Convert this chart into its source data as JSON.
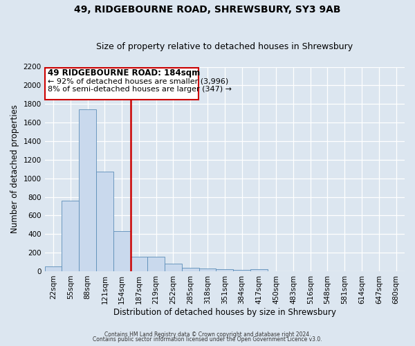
{
  "title": "49, RIDGEBOURNE ROAD, SHREWSBURY, SY3 9AB",
  "subtitle": "Size of property relative to detached houses in Shrewsbury",
  "xlabel": "Distribution of detached houses by size in Shrewsbury",
  "ylabel": "Number of detached properties",
  "bar_labels": [
    "22sqm",
    "55sqm",
    "88sqm",
    "121sqm",
    "154sqm",
    "187sqm",
    "219sqm",
    "252sqm",
    "285sqm",
    "318sqm",
    "351sqm",
    "384sqm",
    "417sqm",
    "450sqm",
    "483sqm",
    "516sqm",
    "548sqm",
    "581sqm",
    "614sqm",
    "647sqm",
    "680sqm"
  ],
  "bar_heights": [
    55,
    760,
    1740,
    1070,
    430,
    155,
    155,
    80,
    40,
    30,
    25,
    15,
    20,
    0,
    0,
    0,
    0,
    0,
    0,
    0,
    0
  ],
  "bar_color": "#c9d9ed",
  "bar_edge_color": "#5b8db8",
  "bar_width": 1.0,
  "vline_color": "#cc0000",
  "annotation_title": "49 RIDGEBOURNE ROAD: 184sqm",
  "annotation_line1": "← 92% of detached houses are smaller (3,996)",
  "annotation_line2": "8% of semi-detached houses are larger (347) →",
  "annotation_box_color": "#ffffff",
  "annotation_box_edge": "#cc0000",
  "ylim": [
    0,
    2200
  ],
  "yticks": [
    0,
    200,
    400,
    600,
    800,
    1000,
    1200,
    1400,
    1600,
    1800,
    2000,
    2200
  ],
  "footer1": "Contains HM Land Registry data © Crown copyright and database right 2024.",
  "footer2": "Contains public sector information licensed under the Open Government Licence v3.0.",
  "background_color": "#dce6f0",
  "plot_background": "#dce6f0",
  "grid_color": "#ffffff",
  "title_fontsize": 10,
  "subtitle_fontsize": 9,
  "axis_label_fontsize": 8.5,
  "tick_fontsize": 7.5,
  "annotation_title_fontsize": 8.5,
  "annotation_text_fontsize": 8
}
